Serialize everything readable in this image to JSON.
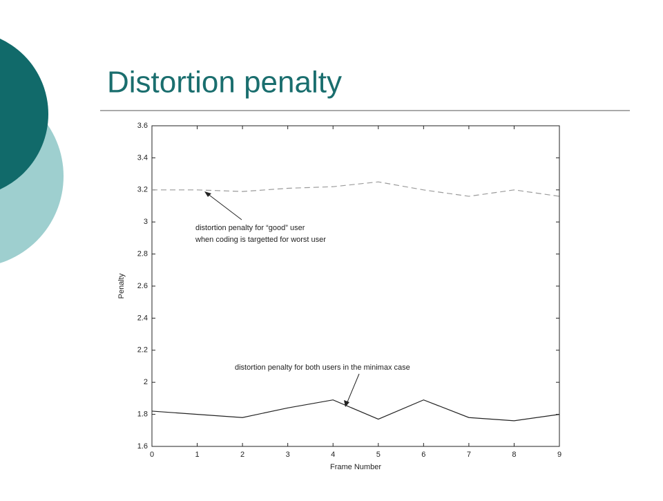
{
  "title": "Distortion penalty",
  "chart_data": {
    "type": "line",
    "x": [
      0,
      1,
      2,
      3,
      4,
      5,
      6,
      7,
      8,
      9
    ],
    "xlim": [
      0,
      9
    ],
    "xticks": [
      0,
      1,
      2,
      3,
      4,
      5,
      6,
      7,
      8,
      9
    ],
    "ylim": [
      1.6,
      3.6
    ],
    "yticks": [
      1.6,
      1.8,
      2,
      2.2,
      2.4,
      2.6,
      2.8,
      3,
      3.2,
      3.4,
      3.6
    ],
    "xlabel": "Frame Number",
    "ylabel": "Penalty",
    "grid": false,
    "series": [
      {
        "color": "#9a9a9a",
        "dashed": true,
        "values": [
          3.2,
          3.2,
          3.19,
          3.21,
          3.22,
          3.25,
          3.2,
          3.16,
          3.2,
          3.16
        ]
      },
      {
        "color": "#222222",
        "dashed": false,
        "values": [
          1.82,
          1.8,
          1.78,
          1.84,
          1.89,
          1.77,
          1.89,
          1.78,
          1.76,
          1.8
        ]
      }
    ],
    "annotations": [
      [
        "distortion penalty for “good” user",
        "when coding is targetted for worst user"
      ],
      [
        "distortion penalty for both users in the minimax case"
      ]
    ]
  }
}
